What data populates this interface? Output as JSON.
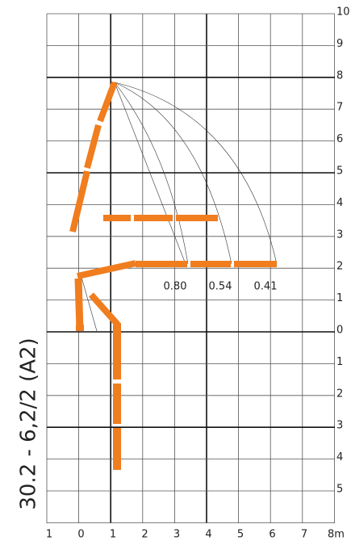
{
  "title": "30.2 - 6,2/2 (A2)",
  "x_labels": [
    1,
    0,
    1,
    2,
    3,
    4,
    5,
    6,
    7,
    "8m"
  ],
  "y_labels": [
    10,
    9,
    8,
    7,
    6,
    5,
    4,
    3,
    2,
    1,
    0,
    1,
    2,
    3,
    4,
    5
  ],
  "load_labels": [
    "0.80",
    "0.54",
    "0.41"
  ]
}
